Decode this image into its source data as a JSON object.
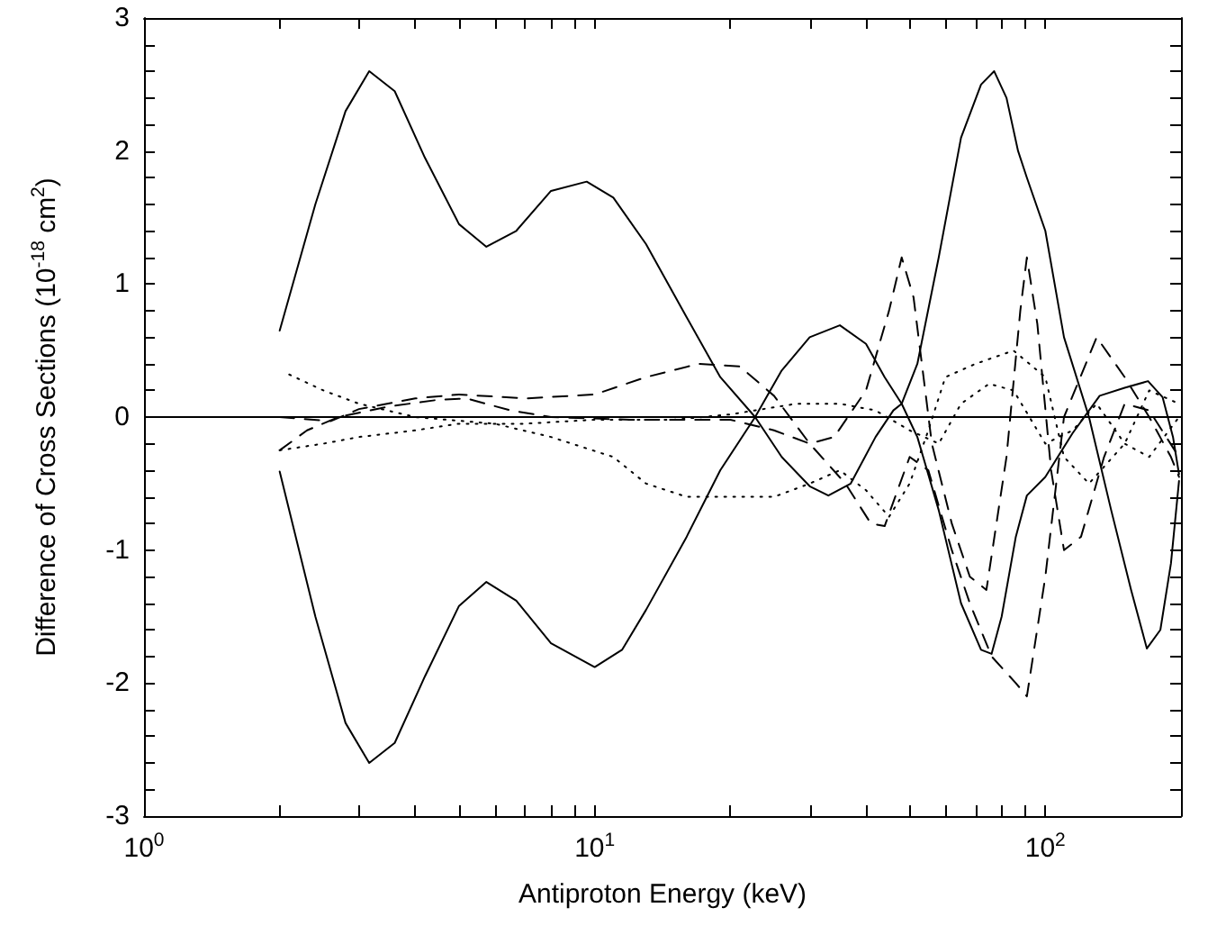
{
  "chart_data": {
    "type": "line",
    "xlabel": "Antiproton Energy (keV)",
    "ylabel": "Difference of Cross Sections (10$^{-18}$ cm$^{2}$)",
    "log": "x",
    "xlim": [
      1,
      200
    ],
    "ylim": [
      -3,
      3
    ],
    "xticks": [
      {
        "value": 1,
        "label": "10$^{0}$"
      },
      {
        "value": 2,
        "label": null
      },
      {
        "value": 3,
        "label": null
      },
      {
        "value": 4,
        "label": null
      },
      {
        "value": 5,
        "label": null
      },
      {
        "value": 6,
        "label": null
      },
      {
        "value": 7,
        "label": null
      },
      {
        "value": 8,
        "label": null
      },
      {
        "value": 9,
        "label": null
      },
      {
        "value": 10,
        "label": "10$^{1}$"
      },
      {
        "value": 20,
        "label": null
      },
      {
        "value": 30,
        "label": null
      },
      {
        "value": 40,
        "label": null
      },
      {
        "value": 50,
        "label": null
      },
      {
        "value": 60,
        "label": null
      },
      {
        "value": 70,
        "label": null
      },
      {
        "value": 80,
        "label": null
      },
      {
        "value": 90,
        "label": null
      },
      {
        "value": 100,
        "label": "10$^{2}$"
      }
    ],
    "yticks": [
      -3,
      {
        "value": -2.8,
        "label": null
      },
      {
        "value": -2.6,
        "label": null
      },
      {
        "value": -2.4,
        "label": null
      },
      {
        "value": -2.2,
        "label": null
      },
      -2,
      {
        "value": -1.8,
        "label": null
      },
      {
        "value": -1.6,
        "label": null
      },
      {
        "value": -1.4,
        "label": null
      },
      {
        "value": -1.2,
        "label": null
      },
      -1,
      {
        "value": -0.8,
        "label": null
      },
      {
        "value": -0.6,
        "label": null
      },
      {
        "value": -0.4,
        "label": null
      },
      {
        "value": -0.2,
        "label": null
      },
      0,
      {
        "value": 0.2,
        "label": null
      },
      {
        "value": 0.4,
        "label": null
      },
      {
        "value": 0.6,
        "label": null
      },
      {
        "value": 0.8,
        "label": null
      },
      1,
      {
        "value": 1.2,
        "label": null
      },
      {
        "value": 1.4,
        "label": null
      },
      {
        "value": 1.6,
        "label": null
      },
      {
        "value": 1.8,
        "label": null
      },
      2,
      {
        "value": 2.2,
        "label": null
      },
      {
        "value": 2.4,
        "label": null
      },
      {
        "value": 2.6,
        "label": null
      },
      {
        "value": 2.8,
        "label": null
      },
      3
    ],
    "grid": false,
    "marker": "none",
    "ref_lines": [
      {
        "axis": "y",
        "value": 0,
        "color": "#000000",
        "line_style": "solid"
      }
    ],
    "series": [
      {
        "color": "#000000",
        "line_style": "solid",
        "x": [
          2,
          2.4,
          2.8,
          3.16,
          3.6,
          4.2,
          5,
          5.75,
          6.7,
          8,
          9.6,
          11,
          13,
          16,
          19,
          22.7,
          26,
          30,
          33,
          37,
          42,
          46,
          48,
          52,
          58,
          65,
          72,
          77,
          82,
          87,
          91,
          100,
          110,
          125,
          140,
          155,
          168,
          180,
          190,
          198
        ],
        "values": [
          0.65,
          1.6,
          2.3,
          2.6,
          2.45,
          1.95,
          1.45,
          1.28,
          1.4,
          1.7,
          1.77,
          1.65,
          1.3,
          0.75,
          0.3,
          0,
          -0.3,
          -0.52,
          -0.59,
          -0.5,
          -0.15,
          0.05,
          0.1,
          0.4,
          1.2,
          2.1,
          2.5,
          2.6,
          2.4,
          2.0,
          1.8,
          1.4,
          0.6,
          0,
          -0.7,
          -1.3,
          -1.74,
          -1.6,
          -1.1,
          -0.48
        ]
      },
      {
        "color": "#000000",
        "line_style": "solid",
        "x": [
          2,
          2.4,
          2.8,
          3.16,
          3.6,
          4.2,
          5,
          5.75,
          6.7,
          8,
          10,
          11.5,
          13,
          16,
          19,
          22.7,
          26,
          30,
          35,
          40,
          44,
          48,
          52,
          58,
          65,
          72,
          76,
          80,
          86,
          91,
          100,
          115,
          132,
          150,
          169,
          182,
          192,
          198
        ],
        "values": [
          -0.41,
          -1.5,
          -2.3,
          -2.6,
          -2.45,
          -1.95,
          -1.42,
          -1.24,
          -1.38,
          -1.7,
          -1.88,
          -1.75,
          -1.45,
          -0.9,
          -0.4,
          0,
          0.35,
          0.6,
          0.69,
          0.55,
          0.3,
          0.1,
          -0.15,
          -0.7,
          -1.4,
          -1.75,
          -1.78,
          -1.5,
          -0.9,
          -0.59,
          -0.45,
          -0.12,
          0.16,
          0.22,
          0.27,
          0.15,
          -0.15,
          -0.43
        ]
      },
      {
        "color": "#000000",
        "line_style": "dashed",
        "x": [
          2,
          2.6,
          3,
          4,
          5,
          7,
          10,
          13,
          17,
          21,
          25,
          30,
          36,
          41,
          44,
          47,
          50,
          55,
          62,
          68,
          76,
          86,
          91,
          100,
          110,
          130,
          150,
          170,
          190,
          198
        ],
        "values": [
          0,
          -0.03,
          0.06,
          0.14,
          0.17,
          0.14,
          0.17,
          0.3,
          0.4,
          0.38,
          0.16,
          -0.2,
          -0.5,
          -0.8,
          -0.82,
          -0.55,
          -0.3,
          -0.4,
          -1.0,
          -1.4,
          -1.8,
          -2.0,
          -2.1,
          -1.2,
          0,
          0.6,
          0.3,
          0,
          -0.3,
          -0.45
        ]
      },
      {
        "color": "#000000",
        "line_style": "dashed",
        "x": [
          2,
          2.3,
          2.7,
          3.5,
          4.5,
          5.2,
          6.5,
          8,
          12,
          20,
          25,
          30,
          34,
          40,
          45,
          48,
          51,
          56,
          62,
          68,
          74,
          82,
          88,
          91,
          96,
          103,
          110,
          120,
          135,
          150,
          170,
          198
        ],
        "values": [
          -0.25,
          -0.1,
          0,
          0.08,
          0.13,
          0.14,
          0.05,
          0,
          -0.02,
          -0.02,
          -0.1,
          -0.2,
          -0.15,
          0.2,
          0.8,
          1.2,
          0.9,
          -0.2,
          -0.8,
          -1.2,
          -1.3,
          -0.3,
          0.8,
          1.2,
          0.7,
          -0.4,
          -1.0,
          -0.9,
          -0.3,
          0.1,
          0.05,
          -0.3
        ]
      },
      {
        "color": "#000000",
        "line_style": "dotted",
        "x": [
          2.1,
          2.5,
          3,
          4,
          6,
          8,
          11,
          13,
          16,
          20,
          25,
          30,
          35,
          40,
          45,
          50,
          55,
          60,
          70,
          85,
          100,
          110,
          125,
          150,
          170,
          198
        ],
        "values": [
          0.32,
          0.2,
          0.1,
          0,
          -0.05,
          -0.15,
          -0.3,
          -0.5,
          -0.6,
          -0.6,
          -0.6,
          -0.5,
          -0.4,
          -0.55,
          -0.75,
          -0.5,
          -0.1,
          0.3,
          0.4,
          0.5,
          0.3,
          -0.3,
          -0.5,
          -0.2,
          0.2,
          0.1
        ]
      },
      {
        "color": "#000000",
        "line_style": "dotted",
        "x": [
          2,
          2.5,
          3,
          4,
          5,
          7,
          10,
          15,
          20,
          28,
          35,
          42,
          50,
          58,
          65,
          75,
          85,
          100,
          115,
          130,
          150,
          170,
          198
        ],
        "values": [
          -0.25,
          -0.2,
          -0.15,
          -0.1,
          -0.05,
          -0.05,
          -0.02,
          -0.02,
          0.02,
          0.1,
          0.1,
          0.05,
          -0.1,
          -0.2,
          0.1,
          0.25,
          0.2,
          -0.2,
          -0.1,
          0.1,
          -0.2,
          -0.3,
          0
        ]
      }
    ]
  }
}
